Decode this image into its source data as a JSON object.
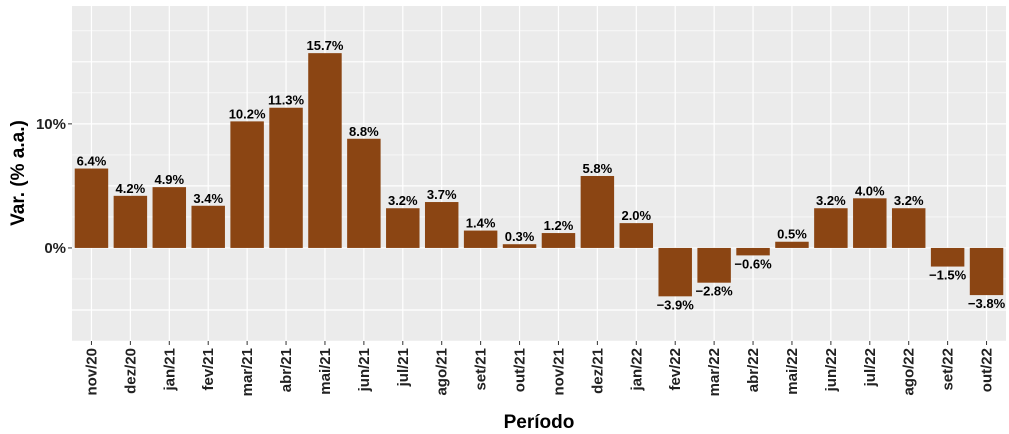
{
  "chart_data": {
    "type": "bar",
    "title": "",
    "xlabel": "Período",
    "ylabel": "Var. (% a.a.)",
    "categories": [
      "nov/20",
      "dez/20",
      "jan/21",
      "fev/21",
      "mar/21",
      "abr/21",
      "mai/21",
      "jun/21",
      "jul/21",
      "ago/21",
      "set/21",
      "out/21",
      "nov/21",
      "dez/21",
      "jan/22",
      "fev/22",
      "mar/22",
      "abr/22",
      "mai/22",
      "jun/22",
      "jul/22",
      "ago/22",
      "set/22",
      "out/22"
    ],
    "values": [
      6.4,
      4.2,
      4.9,
      3.4,
      10.2,
      11.3,
      15.7,
      8.8,
      3.2,
      3.7,
      1.4,
      0.3,
      1.2,
      5.8,
      2.0,
      -3.9,
      -2.8,
      -0.6,
      0.5,
      3.2,
      4.0,
      3.2,
      -1.5,
      -3.8
    ],
    "data_labels": [
      "6.4%",
      "4.2%",
      "4.9%",
      "3.4%",
      "10.2%",
      "11.3%",
      "15.7%",
      "8.8%",
      "3.2%",
      "3.7%",
      "1.4%",
      "0.3%",
      "1.2%",
      "5.8%",
      "2.0%",
      "−3.9%",
      "−2.8%",
      "−0.6%",
      "0.5%",
      "3.2%",
      "4.0%",
      "3.2%",
      "−1.5%",
      "−3.8%"
    ],
    "ylim": [
      -7.5,
      19.5
    ],
    "yticks": [
      0,
      10
    ],
    "ytick_labels": [
      "0%",
      "10%"
    ],
    "grid": true,
    "legend": "none",
    "colors": {
      "bar": "#8B4513",
      "panel": "#EBEBEB",
      "grid": "#ffffff"
    }
  }
}
